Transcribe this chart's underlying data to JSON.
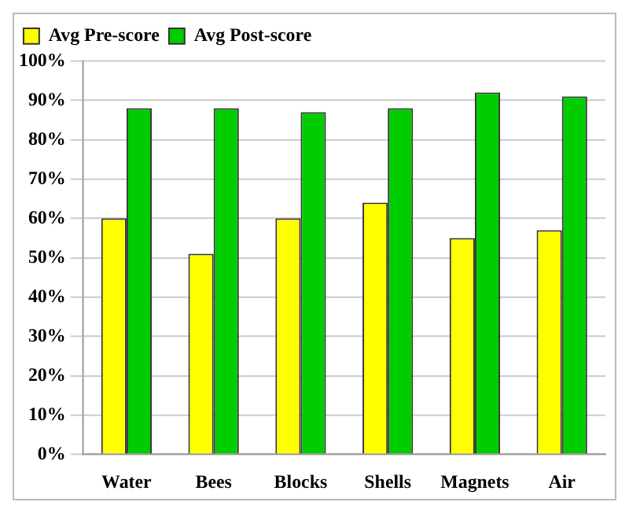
{
  "chart_data": {
    "type": "bar",
    "categories": [
      "Water",
      "Bees",
      "Blocks",
      "Shells",
      "Magnets",
      "Air"
    ],
    "series": [
      {
        "name": "Avg Pre-score",
        "color": "#ffff00",
        "values": [
          60,
          51,
          60,
          64,
          55,
          57
        ]
      },
      {
        "name": "Avg Post-score",
        "color": "#00cc00",
        "values": [
          88,
          88,
          87,
          88,
          92,
          91
        ]
      }
    ],
    "ylim": [
      0,
      100
    ],
    "yticks": [
      {
        "value": 0,
        "label": "0%"
      },
      {
        "value": 10,
        "label": "10%"
      },
      {
        "value": 20,
        "label": "20%"
      },
      {
        "value": 30,
        "label": "30%"
      },
      {
        "value": 40,
        "label": "40%"
      },
      {
        "value": 50,
        "label": "50%"
      },
      {
        "value": 60,
        "label": "60%"
      },
      {
        "value": 70,
        "label": "70%"
      },
      {
        "value": 80,
        "label": "80%"
      },
      {
        "value": 90,
        "label": "90%"
      },
      {
        "value": 100,
        "label": "100%"
      }
    ],
    "grid": "y",
    "legend": "top left"
  }
}
